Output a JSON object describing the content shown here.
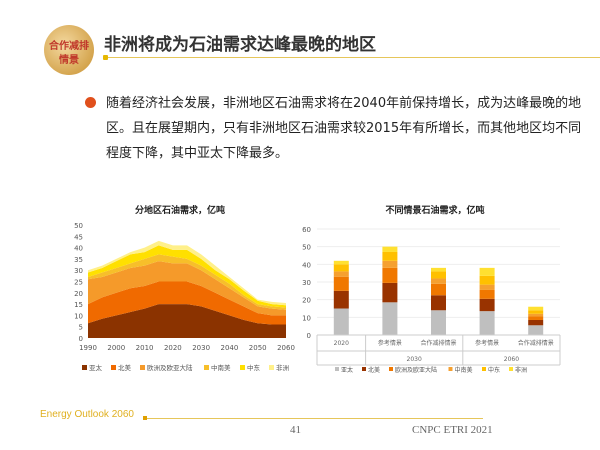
{
  "header": {
    "logo_line1": "合作减排",
    "logo_line2": "情景",
    "title": "非洲将成为石油需求达峰最晚的地区"
  },
  "body": {
    "paragraph": "随着经济社会发展，非洲地区石油需求将在2040年前保持增长，成为达峰最晚的地区。且在展望期内，只有非洲地区石油需求较2015年有所增长，而其他地区均不同程度下降，其中亚太下降最多。"
  },
  "footer": {
    "left": "Energy Outlook 2060",
    "page": "41",
    "right": "CNPC ETRI 2021"
  },
  "chart_data": [
    {
      "type": "area",
      "title": "分地区石油需求，亿吨",
      "ylim": [
        0,
        50
      ],
      "yticks": [
        0,
        5,
        10,
        15,
        20,
        25,
        30,
        35,
        40,
        45,
        50
      ],
      "x": [
        1990,
        1995,
        2000,
        2005,
        2010,
        2015,
        2020,
        2025,
        2030,
        2035,
        2040,
        2045,
        2050,
        2055,
        2060
      ],
      "xticks": [
        1990,
        2000,
        2010,
        2020,
        2030,
        2040,
        2050,
        2060
      ],
      "series": [
        {
          "name": "亚太",
          "color": "#8b3300",
          "values": [
            6.5,
            8.5,
            10,
            11.5,
            13,
            15,
            15,
            15,
            14,
            12,
            10,
            8,
            6.5,
            6,
            6
          ]
        },
        {
          "name": "北美",
          "color": "#f06a00",
          "values": [
            8.5,
            9.5,
            10,
            10.5,
            10,
            10,
            10,
            10,
            9,
            8,
            7,
            6,
            4.5,
            4,
            4
          ]
        },
        {
          "name": "欧洲及欧亚大陆",
          "color": "#f59a2a",
          "values": [
            11,
            9,
            9,
            9,
            9,
            9,
            8,
            8,
            7,
            6,
            5,
            4,
            3,
            3,
            2.5
          ]
        },
        {
          "name": "中南美",
          "color": "#f7bf2a",
          "values": [
            1,
            2,
            2,
            2,
            3,
            3,
            3,
            2,
            2,
            2,
            2,
            1,
            1,
            1,
            1
          ]
        },
        {
          "name": "中东",
          "color": "#ffe000",
          "values": [
            2,
            2,
            3,
            4,
            3,
            4,
            3,
            4,
            3,
            2,
            2,
            2,
            1.5,
            1,
            1
          ]
        },
        {
          "name": "非洲",
          "color": "#fff08a",
          "values": [
            1,
            1,
            1,
            1,
            2,
            2,
            2,
            2,
            2,
            2,
            1,
            1,
            0.5,
            1,
            1
          ]
        }
      ]
    },
    {
      "type": "bar",
      "title": "不同情景石油需求，亿吨",
      "ylim": [
        0,
        60
      ],
      "yticks": [
        0,
        10,
        20,
        30,
        40,
        50,
        60
      ],
      "categories": [
        "2020",
        "参考情景",
        "合作减排情景",
        "参考情景",
        "合作减排情景"
      ],
      "groups": [
        {
          "label": "2030",
          "span": [
            1,
            2
          ]
        },
        {
          "label": "2060",
          "span": [
            3,
            4
          ]
        }
      ],
      "series": [
        {
          "name": "亚太",
          "color": "#bfbfbf",
          "values": [
            15,
            18.5,
            14,
            13.5,
            5.5
          ]
        },
        {
          "name": "北美",
          "color": "#993300",
          "values": [
            10,
            11,
            8.5,
            7,
            3
          ]
        },
        {
          "name": "欧洲及欧亚大陆",
          "color": "#f07800",
          "values": [
            8,
            8.5,
            6.5,
            5,
            2
          ]
        },
        {
          "name": "中南美",
          "color": "#f5a030",
          "values": [
            3,
            4,
            3,
            3,
            1.5
          ]
        },
        {
          "name": "中东",
          "color": "#ffc000",
          "values": [
            4,
            5,
            4,
            5,
            2
          ]
        },
        {
          "name": "非洲",
          "color": "#ffe030",
          "values": [
            2,
            3,
            2,
            4.5,
            2
          ]
        }
      ]
    }
  ]
}
